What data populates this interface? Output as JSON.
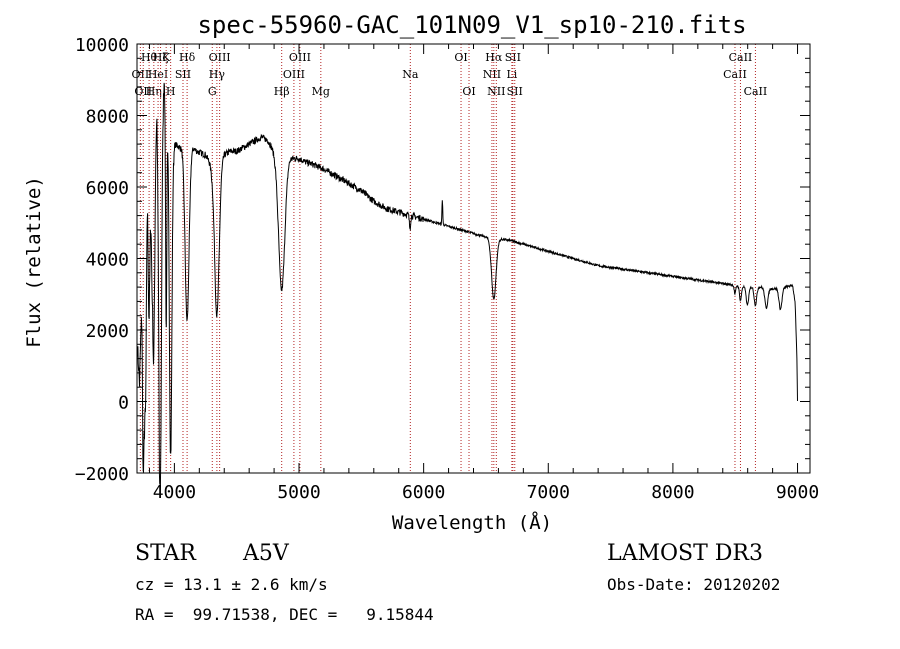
{
  "chart_data": {
    "type": "line",
    "title": "spec-55960-GAC_101N09_V1_sp10-210.fits",
    "xlabel": "Wavelength (Å)",
    "ylabel": "Flux (relative)",
    "xlim": [
      3700,
      9100
    ],
    "ylim": [
      -2000,
      10000
    ],
    "x_ticks": [
      4000,
      5000,
      6000,
      7000,
      8000,
      9000
    ],
    "x_tick_labels": [
      "4000",
      "5000",
      "6000",
      "7000",
      "8000",
      "9000"
    ],
    "y_ticks": [
      -2000,
      0,
      2000,
      4000,
      6000,
      8000,
      10000
    ],
    "y_tick_labels": [
      "−2000",
      "0",
      "2000",
      "4000",
      "6000",
      "8000",
      "10000"
    ],
    "continuum": [
      [
        3705,
        1500
      ],
      [
        3720,
        500
      ],
      [
        3740,
        3000
      ],
      [
        3760,
        1000
      ],
      [
        3780,
        6000
      ],
      [
        3800,
        7600
      ],
      [
        3820,
        4000
      ],
      [
        3840,
        7000
      ],
      [
        3860,
        8000
      ],
      [
        3880,
        3000
      ],
      [
        3900,
        8500
      ],
      [
        3920,
        9200
      ],
      [
        3935,
        8000
      ],
      [
        3950,
        7500
      ],
      [
        3970,
        7000
      ],
      [
        4000,
        7200
      ],
      [
        4050,
        7100
      ],
      [
        4120,
        7200
      ],
      [
        4180,
        7000
      ],
      [
        4250,
        6900
      ],
      [
        4280,
        6700
      ],
      [
        4300,
        6500
      ],
      [
        4330,
        6700
      ],
      [
        4370,
        6700
      ],
      [
        4400,
        6900
      ],
      [
        4450,
        7000
      ],
      [
        4500,
        7000
      ],
      [
        4550,
        7100
      ],
      [
        4600,
        7200
      ],
      [
        4650,
        7300
      ],
      [
        4700,
        7400
      ],
      [
        4750,
        7300
      ],
      [
        4800,
        7000
      ],
      [
        4850,
        6800
      ],
      [
        4900,
        6850
      ],
      [
        4950,
        6800
      ],
      [
        5000,
        6800
      ],
      [
        5050,
        6700
      ],
      [
        5100,
        6650
      ],
      [
        5200,
        6500
      ],
      [
        5300,
        6300
      ],
      [
        5400,
        6100
      ],
      [
        5500,
        5900
      ],
      [
        5600,
        5600
      ],
      [
        5700,
        5400
      ],
      [
        5800,
        5300
      ],
      [
        5900,
        5200
      ],
      [
        6000,
        5100
      ],
      [
        6100,
        5000
      ],
      [
        6200,
        4900
      ],
      [
        6300,
        4800
      ],
      [
        6400,
        4700
      ],
      [
        6500,
        4600
      ],
      [
        6600,
        4550
      ],
      [
        6700,
        4500
      ],
      [
        6800,
        4400
      ],
      [
        6900,
        4300
      ],
      [
        7000,
        4200
      ],
      [
        7200,
        4000
      ],
      [
        7400,
        3800
      ],
      [
        7600,
        3700
      ],
      [
        7800,
        3600
      ],
      [
        8000,
        3500
      ],
      [
        8200,
        3400
      ],
      [
        8400,
        3300
      ],
      [
        8500,
        3250
      ],
      [
        8600,
        3200
      ],
      [
        8700,
        3200
      ],
      [
        8800,
        3150
      ],
      [
        8900,
        3200
      ],
      [
        8960,
        3250
      ],
      [
        8980,
        2800
      ],
      [
        8995,
        1200
      ],
      [
        9000,
        0
      ]
    ],
    "absorption_features": [
      {
        "center": 3750,
        "depth": 4000,
        "width": 6
      },
      {
        "center": 3770,
        "depth": 3500,
        "width": 6
      },
      {
        "center": 3797,
        "depth": 5000,
        "width": 7
      },
      {
        "center": 3835,
        "depth": 5000,
        "width": 8
      },
      {
        "center": 3889,
        "depth": 7500,
        "width": 10
      },
      {
        "center": 3934,
        "depth": 6000,
        "width": 5
      },
      {
        "center": 3970,
        "depth": 8500,
        "width": 10
      },
      {
        "center": 4102,
        "depth": 4900,
        "width": 16
      },
      {
        "center": 4341,
        "depth": 4300,
        "width": 18
      },
      {
        "center": 4861,
        "depth": 3700,
        "width": 25
      },
      {
        "center": 5890,
        "depth": 350,
        "width": 5
      },
      {
        "center": 6563,
        "depth": 1700,
        "width": 18
      },
      {
        "center": 8498,
        "depth": 250,
        "width": 6
      },
      {
        "center": 8542,
        "depth": 400,
        "width": 8
      },
      {
        "center": 8598,
        "depth": 500,
        "width": 10
      },
      {
        "center": 8662,
        "depth": 500,
        "width": 10
      },
      {
        "center": 8750,
        "depth": 550,
        "width": 12
      },
      {
        "center": 8863,
        "depth": 600,
        "width": 12
      }
    ],
    "emission_features": [
      {
        "center": 6150,
        "height": 700,
        "width": 3
      }
    ],
    "line_markers": [
      {
        "wavelength": 3727,
        "label": "OII",
        "row": 2
      },
      {
        "wavelength": 3750,
        "label": "OII",
        "row": 3
      },
      {
        "wavelength": 3797,
        "label": "Hθ",
        "row": 1
      },
      {
        "wavelength": 3835,
        "label": "Hη",
        "row": 3
      },
      {
        "wavelength": 3869,
        "label": "HeI",
        "row": 2
      },
      {
        "wavelength": 3889,
        "label": "Hζ",
        "row": 1
      },
      {
        "wavelength": 3934,
        "label": "K",
        "row": 1
      },
      {
        "wavelength": 3970,
        "label": "H",
        "row": 3
      },
      {
        "wavelength": 4069,
        "label": "SII",
        "row": 2
      },
      {
        "wavelength": 4102,
        "label": "Hδ",
        "row": 1
      },
      {
        "wavelength": 4304,
        "label": "G",
        "row": 3
      },
      {
        "wavelength": 4341,
        "label": "Hγ",
        "row": 2
      },
      {
        "wavelength": 4363,
        "label": "OIII",
        "row": 1
      },
      {
        "wavelength": 4861,
        "label": "Hβ",
        "row": 3
      },
      {
        "wavelength": 4959,
        "label": "OIII",
        "row": 2
      },
      {
        "wavelength": 5007,
        "label": "OIII",
        "row": 1
      },
      {
        "wavelength": 5175,
        "label": "Mg",
        "row": 3
      },
      {
        "wavelength": 5893,
        "label": "Na",
        "row": 2
      },
      {
        "wavelength": 6300,
        "label": "OI",
        "row": 1
      },
      {
        "wavelength": 6364,
        "label": "OI",
        "row": 3
      },
      {
        "wavelength": 6548,
        "label": "NII",
        "row": 2
      },
      {
        "wavelength": 6563,
        "label": "Hα",
        "row": 1
      },
      {
        "wavelength": 6583,
        "label": "NII",
        "row": 3
      },
      {
        "wavelength": 6708,
        "label": "Li",
        "row": 2
      },
      {
        "wavelength": 6716,
        "label": "SII",
        "row": 1
      },
      {
        "wavelength": 6731,
        "label": "SII",
        "row": 3
      },
      {
        "wavelength": 8498,
        "label": "CaII",
        "row": 2
      },
      {
        "wavelength": 8542,
        "label": "CaII",
        "row": 1
      },
      {
        "wavelength": 8662,
        "label": "CaII",
        "row": 3
      }
    ]
  },
  "info": {
    "object_class": "STAR",
    "subclass": "A5V",
    "survey": "LAMOST DR3",
    "redshift_text": "cz = 13.1 ± 2.6 km/s",
    "obs_date_text": "Obs-Date: 20120202",
    "coords_text": "RA =  99.71538, DEC =   9.15844"
  },
  "colors": {
    "spectrum": "#000000",
    "marker_line": "#b22222",
    "axis": "#000000"
  }
}
